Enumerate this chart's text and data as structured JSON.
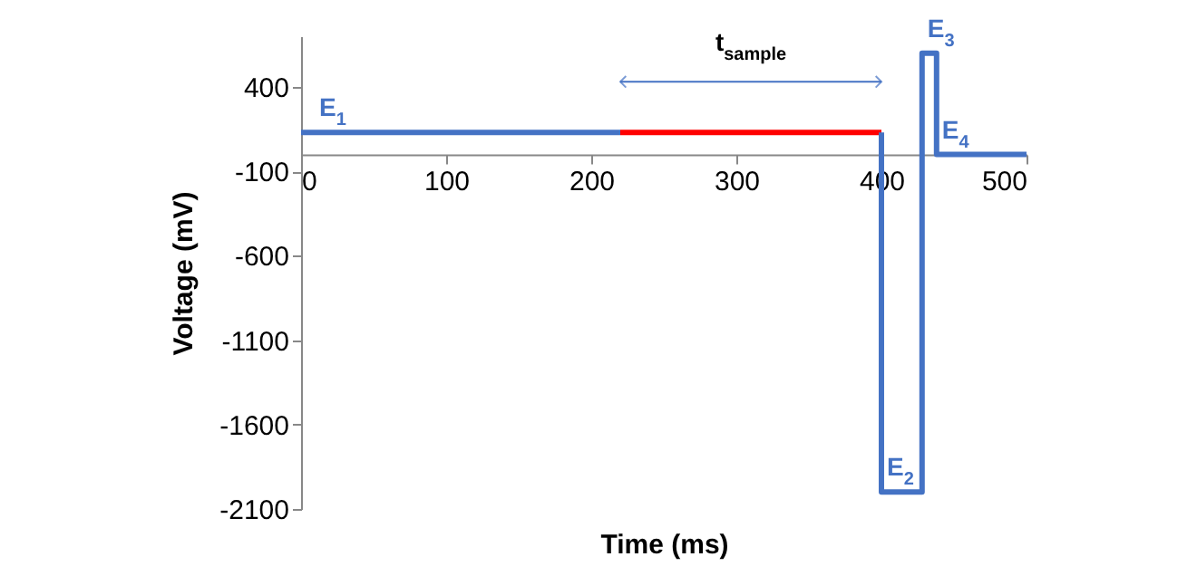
{
  "chart_data": {
    "type": "line",
    "xlabel": "Time (ms)",
    "ylabel": "Voltage (mV)",
    "xlim": [
      0,
      500
    ],
    "xticks": [
      0,
      100,
      200,
      300,
      400,
      500
    ],
    "ylim": [
      -2100,
      700
    ],
    "yticks": [
      400,
      -100,
      -600,
      -1100,
      -1600,
      -2100
    ],
    "marker": "none",
    "line_style": "solid",
    "series": [
      {
        "color": "#4472c4",
        "x": [
          0,
          220
        ],
        "values": [
          130,
          130
        ]
      },
      {
        "color": "#ff0000",
        "x": [
          220,
          400
        ],
        "values": [
          130,
          130
        ]
      },
      {
        "color": "#4472c4",
        "x": [
          400,
          400,
          428,
          428,
          438,
          438,
          500
        ],
        "values": [
          130,
          -2000,
          -2000,
          600,
          600,
          0,
          0
        ]
      }
    ],
    "annotations": [
      {
        "text": "E$_{1}$",
        "x": 0,
        "y": 130
      },
      {
        "text": "t$_{sample}$",
        "x": 310,
        "y": 130
      },
      {
        "text": "E$_{2}$",
        "x": 400,
        "y": -2000
      },
      {
        "text": "E$_{3}$",
        "x": 428,
        "y": 600
      },
      {
        "text": "E$_{4}$",
        "x": 438,
        "y": 0
      }
    ]
  }
}
